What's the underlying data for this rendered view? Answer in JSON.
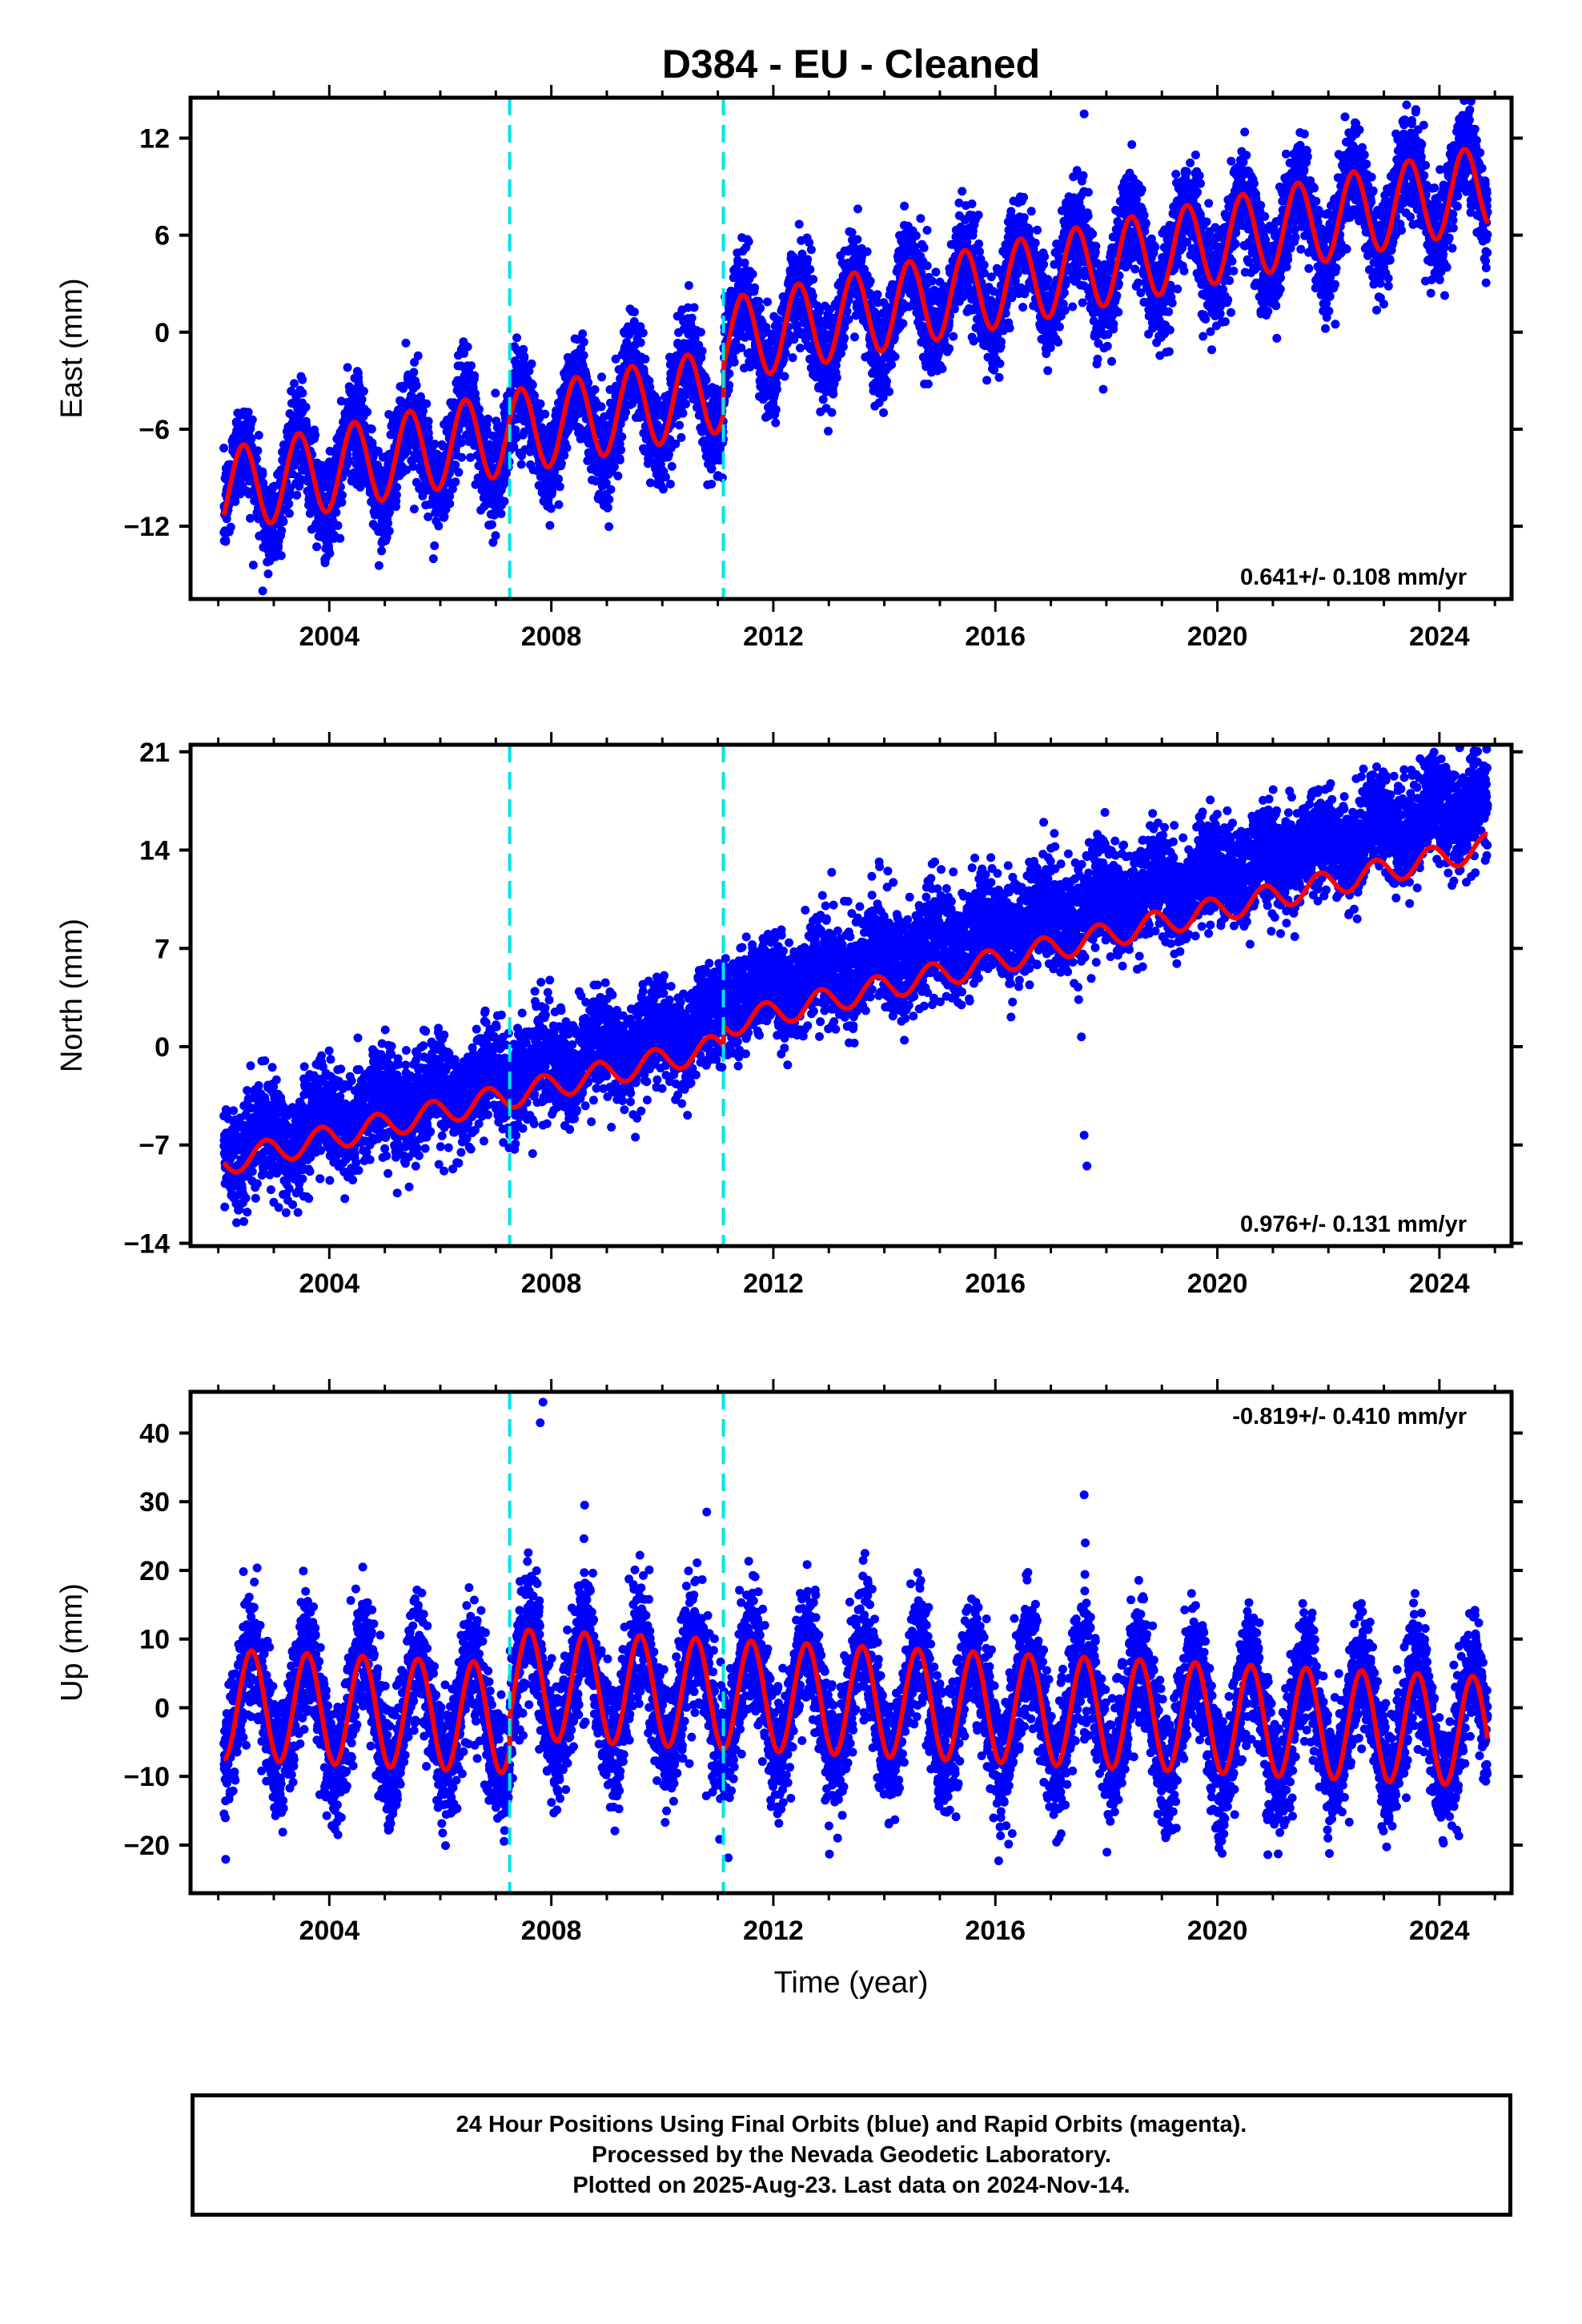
{
  "title": "D384  - EU - Cleaned",
  "footer": {
    "line1": "24 Hour Positions Using Final Orbits (blue) and Rapid Orbits (magenta).",
    "line2": "Processed by the Nevada Geodetic Laboratory.",
    "line3": "Plotted on 2025-Aug-23. Last data on 2024-Nov-14."
  },
  "colors": {
    "final_orbit_points": "#0000ff",
    "model": "#ff0000",
    "offsets": "#00e5e5",
    "frame": "#000000"
  },
  "chart_data": [
    {
      "type": "scatter",
      "panel": "east",
      "ylabel": "East (mm)",
      "xlabel": "",
      "xlim": [
        2001.5,
        2025.3
      ],
      "ylim": [
        -16.5,
        14.5
      ],
      "yticks": [
        12,
        6,
        0,
        -6,
        -12
      ],
      "xticks": [
        2004,
        2008,
        2012,
        2016,
        2020,
        2024
      ],
      "offsets": [
        2007.25,
        2011.1
      ],
      "rate_label": "0.641+/- 0.108 mm/yr",
      "rate_position": "bottom-right",
      "points": {
        "start": 2002.1,
        "end": 2024.87,
        "trend_start": -8.3,
        "trend_end": 7.5,
        "step_at": 2011.1,
        "step": 3.0,
        "amplitude": 2.6,
        "phase_peak": 0.45,
        "scatter": 1.5
      },
      "model": {
        "amplitude": 2.6,
        "phase_peak": 0.45
      },
      "outliers": [
        [
          2017.6,
          13.5
        ],
        [
          2002.8,
          -16.0
        ],
        [
          2006.95,
          -13.0
        ]
      ]
    },
    {
      "type": "scatter",
      "panel": "north",
      "ylabel": "North (mm)",
      "xlabel": "",
      "xlim": [
        2001.5,
        2025.3
      ],
      "ylim": [
        -14.2,
        21.5
      ],
      "yticks": [
        21,
        14,
        7,
        0,
        -7,
        -14
      ],
      "xticks": [
        2004,
        2008,
        2012,
        2016,
        2020,
        2024
      ],
      "offsets": [
        2007.25,
        2011.1
      ],
      "rate_label": "0.976+/- 0.131 mm/yr",
      "rate_position": "bottom-right",
      "points": {
        "start": 2002.1,
        "end": 2024.87,
        "trend_start": -6.5,
        "trend_end": 16.5,
        "step_at": 2011.1,
        "step": 1.5,
        "amplitude": 1.0,
        "phase_peak": 0.85,
        "scatter": 1.8
      },
      "model": {
        "start_value": -7.5,
        "end_value": 13.5,
        "step": 1.5,
        "amplitude": 0.9,
        "phase_peak": 0.85
      },
      "outliers": [
        [
          2017.6,
          -6.3
        ],
        [
          2017.65,
          -8.5
        ],
        [
          2017.55,
          0.7
        ]
      ]
    },
    {
      "type": "scatter",
      "panel": "up",
      "ylabel": "Up (mm)",
      "xlabel": "Time (year)",
      "xlim": [
        2001.5,
        2025.3
      ],
      "ylim": [
        -27,
        46
      ],
      "yticks": [
        40,
        30,
        20,
        10,
        0,
        -10,
        -20
      ],
      "xticks": [
        2004,
        2008,
        2012,
        2016,
        2020,
        2024
      ],
      "offsets": [
        2007.25,
        2011.1
      ],
      "rate_label": "-0.819+/- 0.410 mm/yr",
      "rate_position": "top-right",
      "points": {
        "start": 2002.1,
        "end": 2024.87,
        "trend_start": 3.0,
        "trend_end": -6.0,
        "step_at": 2007.25,
        "step": 5.0,
        "amplitude": 8.5,
        "phase_peak": 0.6,
        "scatter": 4.5
      },
      "model": {
        "amplitude": 8.0,
        "phase_peak": 0.6
      },
      "outliers": [
        [
          2007.85,
          44.5
        ],
        [
          2007.8,
          41.5
        ],
        [
          2017.6,
          31.0
        ],
        [
          2017.62,
          24.0
        ],
        [
          2008.6,
          29.5
        ],
        [
          2010.8,
          28.5
        ]
      ]
    }
  ]
}
